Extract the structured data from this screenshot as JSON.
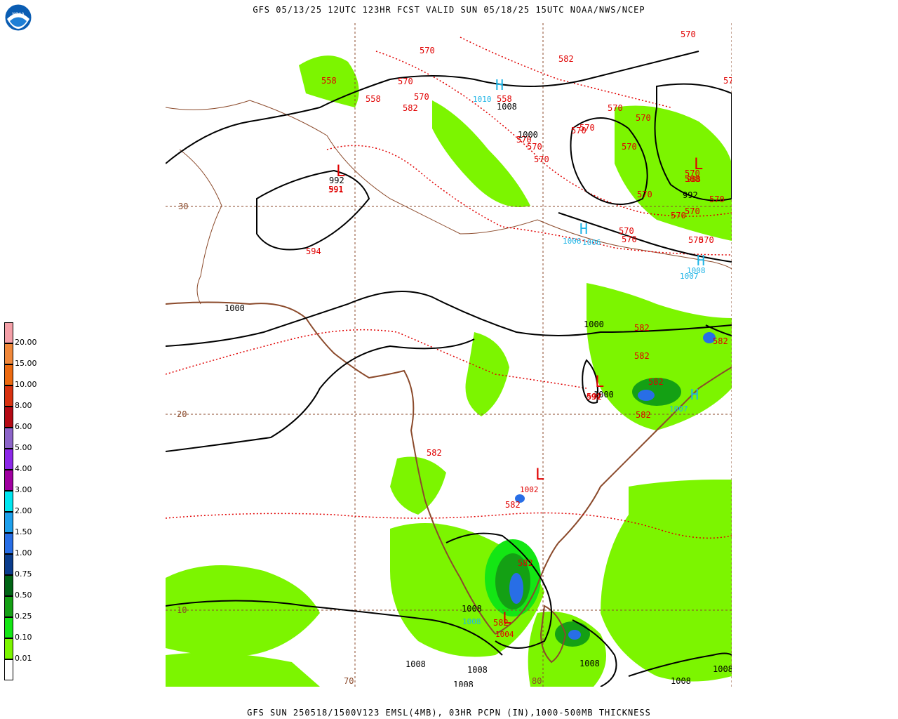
{
  "header": {
    "title": "GFS 05/13/25 12UTC 123HR FCST VALID SUN 05/18/25 15UTC NOAA/NWS/NCEP"
  },
  "footer": {
    "caption": "GFS SUN 250518/1500V123 EMSL(4MB), 03HR PCPN (IN),1000-500MB THICKNESS"
  },
  "logo": {
    "text": "NOAA",
    "icon": "noaa-logo-icon"
  },
  "legend": {
    "items": [
      {
        "label": "20.00",
        "color": "#f4a0a8"
      },
      {
        "label": "15.00",
        "color": "#f0883a"
      },
      {
        "label": "10.00",
        "color": "#ec6a10"
      },
      {
        "label": "8.00",
        "color": "#d83210"
      },
      {
        "label": "6.00",
        "color": "#b40a14"
      },
      {
        "label": "5.00",
        "color": "#8c64c8"
      },
      {
        "label": "4.00",
        "color": "#8c28e8"
      },
      {
        "label": "3.00",
        "color": "#a000a0"
      },
      {
        "label": "2.00",
        "color": "#00e6f0"
      },
      {
        "label": "1.50",
        "color": "#1ea0ec"
      },
      {
        "label": "1.00",
        "color": "#286ee6"
      },
      {
        "label": "0.75",
        "color": "#0a3c8c"
      },
      {
        "label": "0.50",
        "color": "#006414"
      },
      {
        "label": "0.25",
        "color": "#14a014"
      },
      {
        "label": "0.10",
        "color": "#14e614"
      },
      {
        "label": "0.01",
        "color": "#7cf500"
      },
      {
        "label": "",
        "color": "#ffffff"
      }
    ]
  },
  "map": {
    "colors": {
      "land": "#ffffff",
      "precip_light": "#7cf500",
      "precip_mid": "#14e614",
      "precip_heavy": "#14a014",
      "precip_darker": "#006414",
      "precip_blue": "#286ee6",
      "thickness": "#e00000",
      "isobar": "#000000",
      "coast": "#8b4a2b",
      "grid": "#8b4a2b",
      "high": "#1eb4e6",
      "low": "#e00000"
    },
    "lat_labels": [
      "30",
      "20",
      "10"
    ],
    "lon_labels": [
      "70",
      "80"
    ],
    "thickness_labels": [
      "570",
      "570",
      "570",
      "570",
      "582",
      "558",
      "558",
      "558",
      "582",
      "570",
      "570",
      "570",
      "570",
      "570",
      "570",
      "570",
      "570",
      "570",
      "570",
      "570",
      "570",
      "570",
      "570",
      "570",
      "588",
      "570",
      "570",
      "570",
      "594",
      "591",
      "582",
      "582",
      "582",
      "582",
      "592",
      "592",
      "582",
      "582",
      "582",
      "582",
      "582"
    ],
    "isobar_labels": [
      "1008",
      "1000",
      "992",
      "1000",
      "1000",
      "1000",
      "992",
      "1008",
      "1008",
      "1008",
      "1008",
      "1008",
      "1008",
      "1008"
    ],
    "highs": [
      {
        "symbol": "H",
        "value": "1010"
      },
      {
        "symbol": "H",
        "value": "1006"
      },
      {
        "symbol": "H",
        "value": "1007"
      },
      {
        "symbol": "H",
        "value": "1007"
      }
    ],
    "lows": [
      {
        "symbol": "L",
        "value": "991"
      },
      {
        "symbol": "L",
        "value": "988"
      },
      {
        "symbol": "L",
        "value": "999"
      },
      {
        "symbol": "L",
        "value": "1002"
      },
      {
        "symbol": "L",
        "value": "1004"
      }
    ],
    "misc_labels": [
      "1008",
      "1006",
      "1008"
    ]
  }
}
